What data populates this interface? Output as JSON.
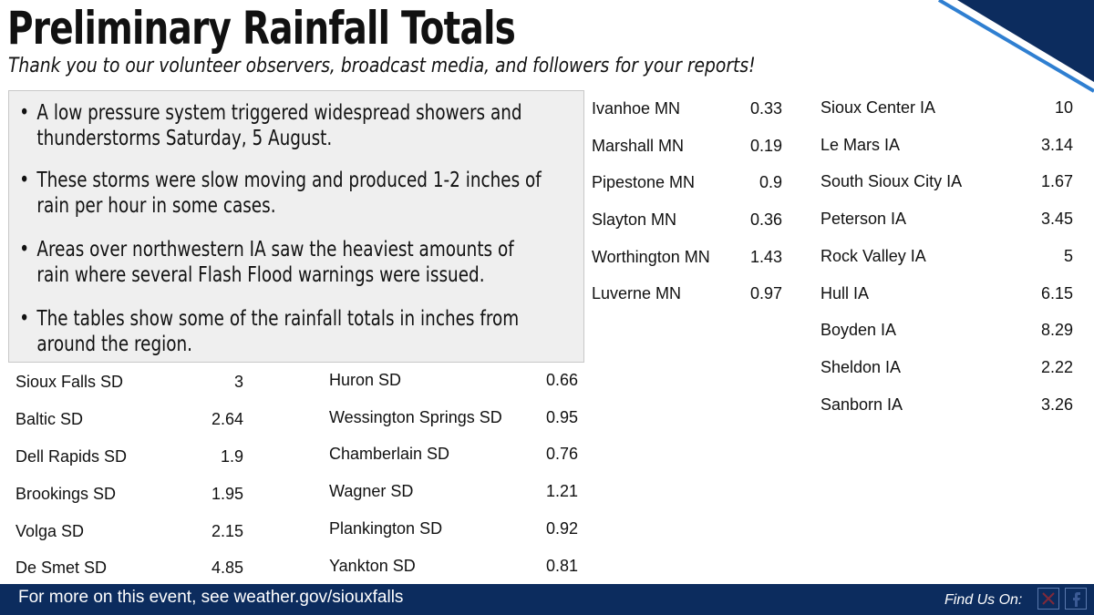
{
  "header": {
    "title": "Preliminary Rainfall Totals",
    "subtitle": "Thank you to our volunteer observers, broadcast media, and followers for your reports!"
  },
  "summary": {
    "bullets": [
      "A low pressure system triggered widespread showers and thunderstorms Saturday, 5 August.",
      "These storms were slow moving and produced 1-2 inches of rain per hour in some cases.",
      "Areas over northwestern IA saw the heaviest amounts of rain where several Flash Flood warnings were issued.",
      "The tables show some of the rainfall totals in inches from around the region."
    ]
  },
  "tables": {
    "sd_east": [
      {
        "location": "Sioux Falls SD",
        "amount": "3"
      },
      {
        "location": "Baltic SD",
        "amount": "2.64"
      },
      {
        "location": "Dell Rapids SD",
        "amount": "1.9"
      },
      {
        "location": "Brookings SD",
        "amount": "1.95"
      },
      {
        "location": "Volga SD",
        "amount": "2.15"
      },
      {
        "location": "De Smet SD",
        "amount": "4.85"
      }
    ],
    "sd_central": [
      {
        "location": "Huron SD",
        "amount": "0.66"
      },
      {
        "location": "Wessington Springs SD",
        "amount": "0.95"
      },
      {
        "location": "Chamberlain SD",
        "amount": "0.76"
      },
      {
        "location": "Wagner SD",
        "amount": "1.21"
      },
      {
        "location": "Plankington SD",
        "amount": "0.92"
      },
      {
        "location": "Yankton SD",
        "amount": "0.81"
      }
    ],
    "mn": [
      {
        "location": "Ivanhoe MN",
        "amount": "0.33"
      },
      {
        "location": "Marshall MN",
        "amount": "0.19"
      },
      {
        "location": "Pipestone MN",
        "amount": "0.9"
      },
      {
        "location": "Slayton MN",
        "amount": "0.36"
      },
      {
        "location": "Worthington MN",
        "amount": "1.43"
      },
      {
        "location": "Luverne MN",
        "amount": "0.97"
      }
    ],
    "ia": [
      {
        "location": "Sioux Center IA",
        "amount": "10"
      },
      {
        "location": "Le Mars IA",
        "amount": "3.14"
      },
      {
        "location": "South Sioux City IA",
        "amount": "1.67"
      },
      {
        "location": "Peterson IA",
        "amount": "3.45"
      },
      {
        "location": "Rock Valley IA",
        "amount": "5"
      },
      {
        "location": "Hull IA",
        "amount": "6.15"
      },
      {
        "location": "Boyden IA",
        "amount": "8.29"
      },
      {
        "location": "Sheldon IA",
        "amount": "2.22"
      },
      {
        "location": "Sanborn IA",
        "amount": "3.26"
      }
    ]
  },
  "footer": {
    "text": "For more on this event, see weather.gov/siouxfalls",
    "find_us": "Find Us On:",
    "social_icons": [
      "x-icon",
      "facebook-icon"
    ]
  },
  "colors": {
    "navy": "#0c2c5e",
    "accent_blue": "#2f7fd1",
    "panel_gray": "#efefef"
  }
}
